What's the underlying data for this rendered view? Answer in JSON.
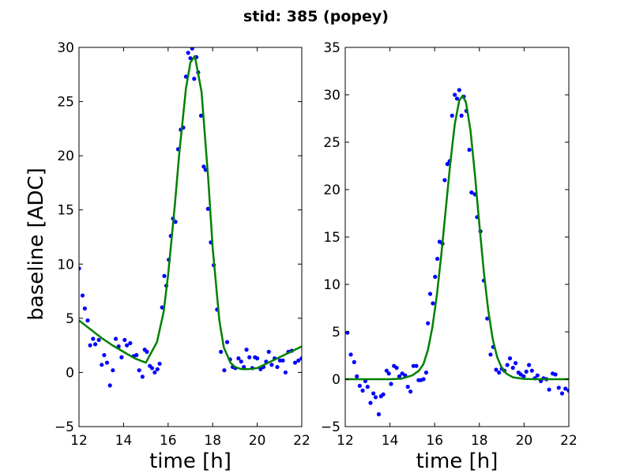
{
  "figure": {
    "title": "stid: 385 (popey)"
  },
  "colors": {
    "points": "#0000ff",
    "fit": "#008000",
    "axes": "#000000",
    "background": "#ffffff"
  },
  "chart_data": [
    {
      "type": "scatter",
      "xlabel": "time [h]",
      "ylabel": "baseline [ADC]",
      "xlim": [
        12,
        22
      ],
      "ylim": [
        -5,
        30
      ],
      "xticks": [
        12,
        14,
        16,
        18,
        20,
        22
      ],
      "yticks": [
        -5,
        0,
        5,
        10,
        15,
        20,
        25,
        30
      ],
      "series": [
        {
          "role": "data points",
          "x": [
            12.0,
            12.16,
            12.26,
            12.39,
            12.5,
            12.63,
            12.73,
            12.89,
            13.02,
            13.13,
            13.26,
            13.39,
            13.52,
            13.65,
            13.78,
            13.91,
            14.05,
            14.15,
            14.3,
            14.45,
            14.58,
            14.7,
            14.85,
            14.95,
            15.05,
            15.18,
            15.28,
            15.4,
            15.52,
            15.62,
            15.73,
            15.83,
            15.92,
            16.03,
            16.12,
            16.22,
            16.33,
            16.45,
            16.57,
            16.68,
            16.8,
            16.9,
            17.0,
            17.08,
            17.17,
            17.27,
            17.35,
            17.48,
            17.6,
            17.68,
            17.79,
            17.92,
            18.05,
            18.2,
            18.37,
            18.52,
            18.65,
            18.78,
            18.9,
            19.02,
            19.16,
            19.28,
            19.4,
            19.52,
            19.65,
            19.78,
            19.9,
            20.0,
            20.15,
            20.28,
            20.4,
            20.52,
            20.65,
            20.78,
            20.9,
            21.02,
            21.15,
            21.27,
            21.4,
            21.55,
            21.7,
            21.85,
            22.0
          ],
          "y": [
            9.6,
            7.1,
            5.9,
            4.8,
            2.5,
            3.1,
            2.6,
            3.0,
            0.7,
            1.6,
            0.9,
            -1.2,
            0.2,
            3.1,
            2.4,
            1.4,
            3.0,
            2.5,
            2.7,
            1.5,
            1.6,
            0.2,
            -0.4,
            2.1,
            1.9,
            0.6,
            0.4,
            0.0,
            0.3,
            0.8,
            6.0,
            8.9,
            8.0,
            10.4,
            12.6,
            14.2,
            13.9,
            20.6,
            22.4,
            22.6,
            27.3,
            29.5,
            29.0,
            29.9,
            27.1,
            29.1,
            27.7,
            23.7,
            19.0,
            18.7,
            15.1,
            12.0,
            9.9,
            5.8,
            1.9,
            0.2,
            2.8,
            1.2,
            0.5,
            0.4,
            1.3,
            1.0,
            0.5,
            2.1,
            1.4,
            0.4,
            1.4,
            1.3,
            0.3,
            0.5,
            1.0,
            1.9,
            0.7,
            1.3,
            0.5,
            1.1,
            1.1,
            0.0,
            1.9,
            2.0,
            0.9,
            1.1,
            1.3
          ]
        },
        {
          "role": "fit",
          "x": [
            12.0,
            12.5,
            13.0,
            13.5,
            14.0,
            14.5,
            15.0,
            15.5,
            15.8,
            16.0,
            16.3,
            16.5,
            16.8,
            17.0,
            17.2,
            17.5,
            17.8,
            18.0,
            18.3,
            18.5,
            18.8,
            19.0,
            19.3,
            19.6,
            20.0,
            20.5,
            21.0,
            21.5,
            22.0
          ],
          "y": [
            4.8,
            4.0,
            3.2,
            2.5,
            1.9,
            1.3,
            0.9,
            2.8,
            5.6,
            9.0,
            15.4,
            20.2,
            26.2,
            28.6,
            29.2,
            25.9,
            17.9,
            11.5,
            4.8,
            2.3,
            0.9,
            0.5,
            0.3,
            0.3,
            0.4,
            0.9,
            1.4,
            1.9,
            2.4
          ]
        }
      ]
    },
    {
      "type": "scatter",
      "xlabel": "time [h]",
      "ylabel": "",
      "xlim": [
        12,
        22
      ],
      "ylim": [
        -5,
        35
      ],
      "xticks": [
        12,
        14,
        16,
        18,
        20,
        22
      ],
      "yticks": [
        -5,
        0,
        5,
        10,
        15,
        20,
        25,
        30,
        35
      ],
      "series": [
        {
          "role": "data points",
          "x": [
            12.1,
            12.25,
            12.4,
            12.52,
            12.65,
            12.78,
            12.9,
            13.0,
            13.13,
            13.26,
            13.36,
            13.5,
            13.6,
            13.7,
            13.85,
            13.95,
            14.05,
            14.18,
            14.3,
            14.42,
            14.55,
            14.68,
            14.8,
            14.92,
            15.05,
            15.18,
            15.28,
            15.38,
            15.5,
            15.62,
            15.7,
            15.8,
            15.92,
            16.02,
            16.12,
            16.22,
            16.35,
            16.45,
            16.57,
            16.67,
            16.78,
            16.9,
            17.0,
            17.1,
            17.2,
            17.3,
            17.42,
            17.55,
            17.65,
            17.8,
            17.9,
            18.05,
            18.2,
            18.35,
            18.5,
            18.62,
            18.75,
            18.88,
            19.0,
            19.12,
            19.25,
            19.37,
            19.5,
            19.62,
            19.75,
            19.85,
            19.98,
            20.1,
            20.22,
            20.35,
            20.48,
            20.6,
            20.75,
            20.87,
            21.0,
            21.12,
            21.28,
            21.4,
            21.55,
            21.7,
            21.85,
            22.0
          ],
          "y": [
            4.9,
            2.6,
            1.8,
            0.3,
            -0.7,
            -1.2,
            -0.2,
            -0.8,
            -2.5,
            -1.5,
            -1.9,
            -3.7,
            -1.8,
            -1.6,
            0.9,
            0.6,
            -0.5,
            1.4,
            1.2,
            0.3,
            0.6,
            0.4,
            -0.8,
            -1.3,
            1.4,
            1.4,
            -0.1,
            -0.1,
            0.0,
            0.7,
            5.9,
            9.0,
            8.0,
            10.8,
            12.7,
            14.5,
            14.3,
            21.0,
            22.7,
            23.0,
            27.8,
            30.0,
            29.6,
            30.5,
            27.8,
            29.8,
            28.3,
            24.2,
            19.7,
            19.5,
            17.1,
            15.6,
            10.4,
            6.4,
            2.6,
            3.4,
            1.0,
            0.7,
            1.1,
            0.9,
            1.5,
            2.2,
            1.2,
            1.7,
            0.7,
            0.5,
            0.3,
            0.8,
            1.5,
            0.9,
            0.1,
            0.4,
            -0.2,
            0.1,
            0.0,
            -1.1,
            0.6,
            0.5,
            -0.9,
            -1.5,
            -1.0,
            -1.2
          ]
        },
        {
          "role": "fit",
          "x": [
            12.0,
            12.5,
            13.0,
            13.5,
            14.0,
            14.5,
            15.0,
            15.3,
            15.5,
            15.7,
            15.9,
            16.1,
            16.3,
            16.5,
            16.7,
            16.9,
            17.1,
            17.25,
            17.4,
            17.6,
            17.8,
            18.0,
            18.2,
            18.4,
            18.6,
            18.8,
            19.0,
            19.2,
            19.5,
            20.0,
            20.5,
            21.0,
            22.0
          ],
          "y": [
            0.0,
            0.0,
            0.0,
            0.0,
            0.0,
            0.05,
            0.4,
            0.9,
            1.6,
            3.1,
            5.5,
            8.9,
            13.2,
            18.0,
            22.8,
            26.9,
            29.4,
            29.9,
            29.2,
            26.3,
            21.6,
            16.3,
            11.3,
            7.2,
            4.2,
            2.3,
            1.2,
            0.6,
            0.2,
            0.03,
            0.0,
            0.0,
            0.0
          ]
        }
      ]
    }
  ]
}
